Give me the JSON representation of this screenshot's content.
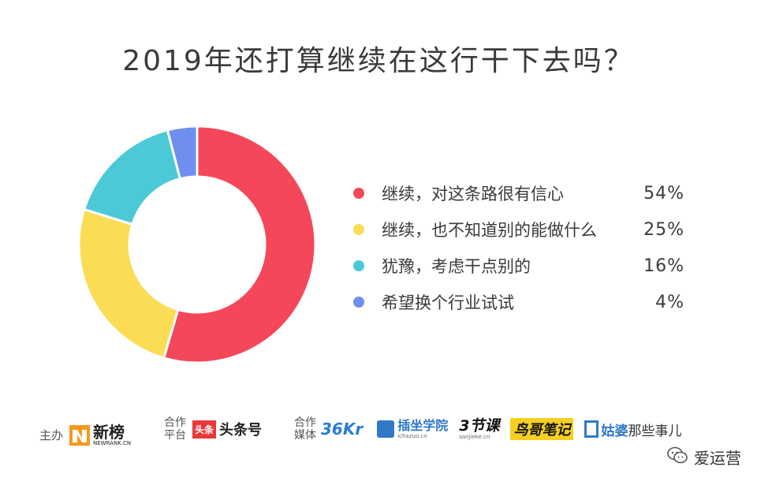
{
  "title": "2019年还打算继续在这行干下去吗？",
  "chart_data": {
    "type": "pie",
    "title": "2019年还打算继续在这行干下去吗？",
    "donut": true,
    "categories": [
      "继续，对这条路很有信心",
      "继续，也不知道别的能做什么",
      "犹豫，考虑干点别的",
      "希望换个行业试试"
    ],
    "values": [
      54,
      25,
      16,
      4
    ],
    "value_labels": [
      "54%",
      "25%",
      "16%",
      "4%"
    ],
    "colors": [
      "#f5475a",
      "#fbdc55",
      "#4bc9d6",
      "#6f8ff0"
    ],
    "legend": "right"
  },
  "footer": {
    "host_label": "主办",
    "host_logo": "新榜",
    "host_logo_sub": "NEWRANK.CN",
    "platform_label_1": "合作",
    "platform_label_2": "平台",
    "platform_logo_badge": "头条",
    "platform_logo_text": "头条号",
    "media_label_1": "合作",
    "media_label_2": "媒体",
    "media_logos": {
      "kr": "36Kr",
      "chazuo": "插坐学院",
      "chazuo_sub": "ichazuo.cn",
      "sanjieke": "3节课",
      "sanjieke_sub": "sanjieke.cn",
      "niaoge": "鸟哥笔记",
      "gupo": "姑婆",
      "gupo_suffix": "那些事儿"
    }
  },
  "watermark": {
    "account": "爱运营"
  }
}
